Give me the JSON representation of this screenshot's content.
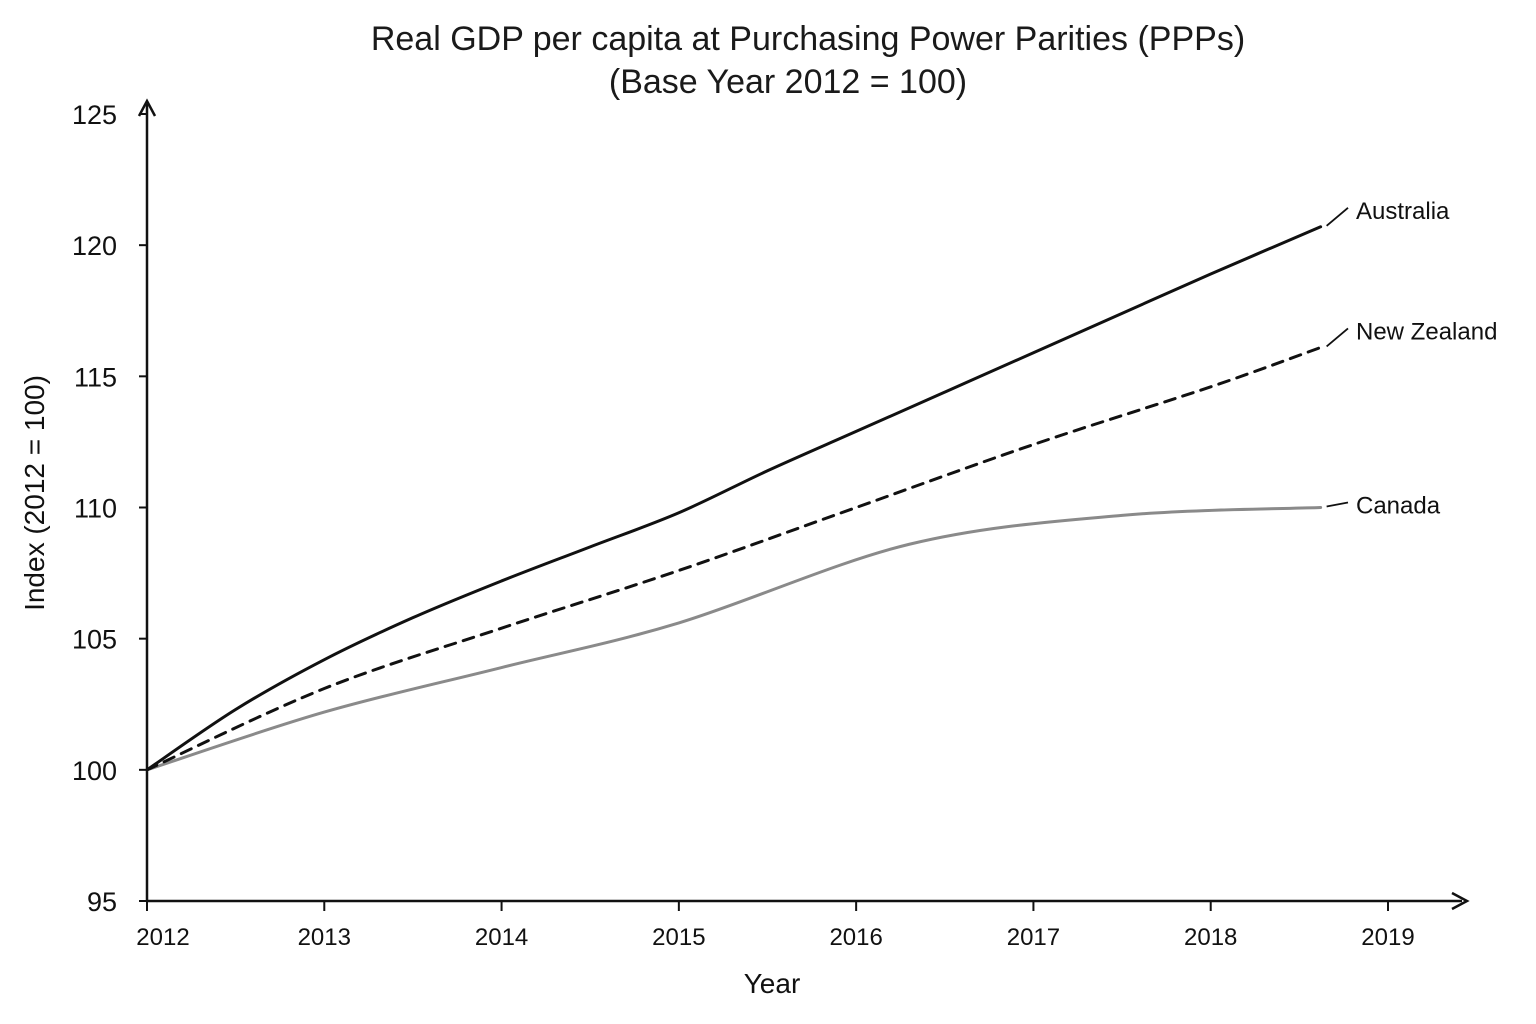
{
  "chart_data": {
    "type": "line",
    "title": "Real GDP per capita at Purchasing Power Parities (PPPs)",
    "subtitle": "(Base Year 2012 = 100)",
    "xlabel": "Year",
    "ylabel": "Index (2012 = 100)",
    "xlim": [
      2012,
      2019
    ],
    "ylim": [
      95,
      125
    ],
    "x_ticks": [
      "2012",
      "2013",
      "2014",
      "2015",
      "2016",
      "2017",
      "2018",
      "2019"
    ],
    "y_ticks": [
      "95",
      "100",
      "105",
      "110",
      "115",
      "120",
      "125"
    ],
    "grid": false,
    "legend": "direct labels at line ends",
    "series": [
      {
        "name": "Australia",
        "style": "solid",
        "color": "#111111",
        "x": [
          2012,
          2012.5,
          2013,
          2013.5,
          2014,
          2014.5,
          2015,
          2015.5,
          2016,
          2016.5,
          2017,
          2017.5,
          2018,
          2018.62
        ],
        "y": [
          100,
          102.3,
          104.2,
          105.8,
          107.2,
          108.5,
          109.8,
          111.4,
          112.9,
          114.4,
          115.9,
          117.4,
          118.9,
          120.7
        ]
      },
      {
        "name": "New Zealand",
        "style": "dashed",
        "color": "#111111",
        "x": [
          2012,
          2013,
          2014,
          2015,
          2016,
          2017,
          2018,
          2018.62
        ],
        "y": [
          100,
          103.1,
          105.4,
          107.6,
          110.0,
          112.4,
          114.6,
          116.1
        ]
      },
      {
        "name": "Canada",
        "style": "solid",
        "color": "#8a8a8a",
        "x": [
          2012,
          2013,
          2014,
          2015,
          2016.3,
          2017.5,
          2018.62
        ],
        "y": [
          100,
          102.2,
          103.9,
          105.6,
          108.6,
          109.7,
          110.0
        ]
      }
    ]
  }
}
